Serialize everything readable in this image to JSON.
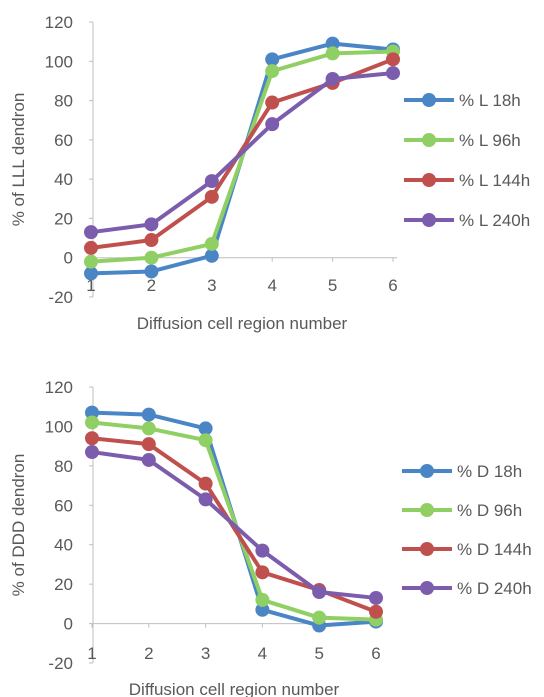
{
  "chart_data": [
    {
      "type": "line",
      "title": "",
      "xlabel": "Diffusion cell region number",
      "ylabel": "% of LLL dendron",
      "x": [
        1,
        2,
        3,
        4,
        5,
        6
      ],
      "xlim": [
        1,
        6
      ],
      "ylim": [
        -20,
        120
      ],
      "yticks": [
        -20,
        0,
        20,
        40,
        60,
        80,
        100,
        120
      ],
      "grid": false,
      "legend_position": "right",
      "series": [
        {
          "name": "% L 18h",
          "color": "#4a86c5",
          "values": [
            -8,
            -7,
            1,
            101,
            109,
            106
          ]
        },
        {
          "name": "% L 96h",
          "color": "#8fcf64",
          "values": [
            -2,
            0,
            7,
            95,
            104,
            105
          ]
        },
        {
          "name": "% L 144h",
          "color": "#c0504d",
          "values": [
            5,
            9,
            31,
            79,
            89,
            101
          ]
        },
        {
          "name": "% L 240h",
          "color": "#7c5cac",
          "values": [
            13,
            17,
            39,
            68,
            91,
            94
          ]
        }
      ]
    },
    {
      "type": "line",
      "title": "",
      "xlabel": "Diffusion cell region number",
      "ylabel": "% of DDD dendron",
      "x": [
        1,
        2,
        3,
        4,
        5,
        6
      ],
      "xlim": [
        1,
        6
      ],
      "ylim": [
        -20,
        120
      ],
      "yticks": [
        -20,
        0,
        20,
        40,
        60,
        80,
        100,
        120
      ],
      "grid": false,
      "legend_position": "right",
      "series": [
        {
          "name": "% D 18h",
          "color": "#4a86c5",
          "values": [
            107,
            106,
            99,
            7,
            -1,
            1
          ]
        },
        {
          "name": "% D 96h",
          "color": "#8fcf64",
          "values": [
            102,
            99,
            93,
            12,
            3,
            2
          ]
        },
        {
          "name": "% D 144h",
          "color": "#c0504d",
          "values": [
            94,
            91,
            71,
            26,
            17,
            6
          ]
        },
        {
          "name": "% D 240h",
          "color": "#7c5cac",
          "values": [
            87,
            83,
            63,
            37,
            16,
            13
          ]
        }
      ]
    }
  ]
}
